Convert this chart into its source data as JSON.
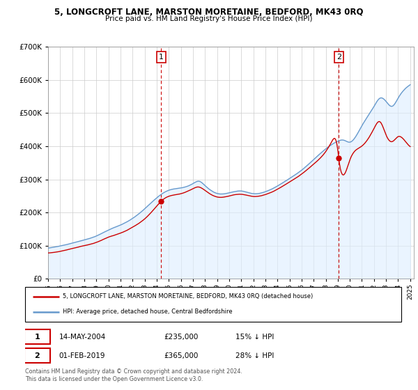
{
  "title": "5, LONGCROFT LANE, MARSTON MORETAINE, BEDFORD, MK43 0RQ",
  "subtitle": "Price paid vs. HM Land Registry's House Price Index (HPI)",
  "legend_line1": "5, LONGCROFT LANE, MARSTON MORETAINE, BEDFORD, MK43 0RQ (detached house)",
  "legend_line2": "HPI: Average price, detached house, Central Bedfordshire",
  "annotation1_label": "1",
  "annotation1_date": "14-MAY-2004",
  "annotation1_price": "£235,000",
  "annotation1_hpi": "15% ↓ HPI",
  "annotation2_label": "2",
  "annotation2_date": "01-FEB-2019",
  "annotation2_price": "£365,000",
  "annotation2_hpi": "28% ↓ HPI",
  "footnote": "Contains HM Land Registry data © Crown copyright and database right 2024.\nThis data is licensed under the Open Government Licence v3.0.",
  "red_color": "#cc0000",
  "blue_color": "#6699cc",
  "fill_color": "#ddeeff",
  "grid_color": "#cccccc",
  "annotation_line_color": "#cc0000",
  "ylim": [
    0,
    700000
  ],
  "yticks": [
    0,
    100000,
    200000,
    300000,
    400000,
    500000,
    600000,
    700000
  ],
  "sale1_year": 2004.37,
  "sale1_price": 235000,
  "sale2_year": 2019.08,
  "sale2_price": 365000
}
